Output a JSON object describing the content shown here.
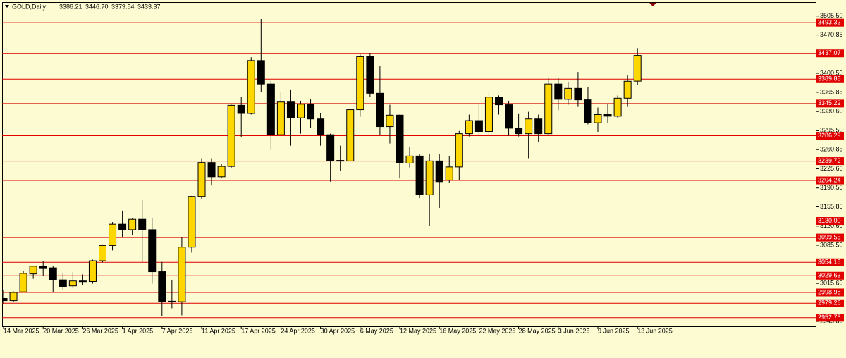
{
  "chart_data": {
    "type": "candlestick",
    "title": "GOLD,Daily",
    "header_ohlc": [
      "3386.21",
      "3446.70",
      "3379.54",
      "3433.37"
    ],
    "categories": [
      "14 Mar 2025",
      null,
      null,
      null,
      "20 Mar 2025",
      null,
      null,
      null,
      "26 Mar 2025",
      null,
      null,
      null,
      "1 Apr 2025",
      null,
      null,
      null,
      "7 Apr 2025",
      null,
      null,
      null,
      "11 Apr 2025",
      null,
      null,
      null,
      "17 Apr 2025",
      null,
      null,
      null,
      "24 Apr 2025",
      null,
      null,
      null,
      "30 Apr 2025",
      null,
      null,
      null,
      "6 May 2025",
      null,
      null,
      null,
      "12 May 2025",
      null,
      null,
      null,
      "16 May 2025",
      null,
      null,
      null,
      "22 May 2025",
      null,
      null,
      null,
      "28 May 2025",
      null,
      null,
      null,
      "3 Jun 2025",
      null,
      null,
      null,
      "9 Jun 2025",
      null,
      null,
      null,
      "13 Jun 2025"
    ],
    "open": [
      2988,
      2984,
      3000,
      3033,
      3047,
      3044,
      3022,
      3011,
      3020,
      3019,
      3057,
      3085,
      3124,
      3114,
      3133,
      3114,
      3037,
      2982,
      2982,
      3082,
      3175,
      3237,
      3211,
      3230,
      3342,
      3327,
      3424,
      3381,
      3288,
      3348,
      3319,
      3344,
      3317,
      3288,
      3241,
      3240,
      3334,
      3431,
      3364,
      3303,
      3324,
      3236,
      3249,
      3178,
      3240,
      3205,
      3229,
      3290,
      3314,
      3294,
      3357,
      3343,
      3300,
      3290,
      3317,
      3290,
      3381,
      3353,
      3373,
      3352,
      3310,
      3325,
      3322,
      3355,
      3386.21
    ],
    "high": [
      3004,
      3001,
      3038,
      3048,
      3057,
      3048,
      3034,
      3036,
      3032,
      3059,
      3087,
      3128,
      3149,
      3135,
      3168,
      3136,
      3055,
      3022,
      3100,
      3176,
      3245,
      3245,
      3234,
      3343,
      3357,
      3430,
      3500,
      3387,
      3367,
      3371,
      3350,
      3353,
      3328,
      3290,
      3268,
      3336,
      3437,
      3438,
      3414,
      3343,
      3325,
      3265,
      3253,
      3252,
      3252,
      3249,
      3295,
      3325,
      3345,
      3365,
      3360,
      3350,
      3326,
      3330,
      3325,
      3392,
      3392,
      3385,
      3403,
      3375,
      3338,
      3344,
      3360,
      3398,
      3446.7
    ],
    "low": [
      2977,
      2982,
      2999,
      3024,
      3029,
      2999,
      3004,
      3007,
      3012,
      3015,
      3054,
      3076,
      3100,
      3104,
      3054,
      3015,
      2956,
      2970,
      2957,
      3072,
      3170,
      3195,
      3208,
      3228,
      3283,
      3325,
      3366,
      3260,
      3287,
      3268,
      3290,
      3300,
      3268,
      3202,
      3222,
      3239,
      3321,
      3357,
      3287,
      3272,
      3208,
      3228,
      3172,
      3121,
      3154,
      3200,
      3205,
      3285,
      3286,
      3287,
      3325,
      3286,
      3285,
      3245,
      3275,
      3287,
      3333,
      3343,
      3339,
      3307,
      3293,
      3309,
      3318,
      3339,
      3379.54
    ],
    "close": [
      2984,
      2999,
      3034,
      3047,
      3044,
      3022,
      3010,
      3020,
      3019,
      3057,
      3085,
      3124,
      3114,
      3133,
      3114,
      3037,
      2982,
      2983,
      3082,
      3175,
      3237,
      3211,
      3230,
      3342,
      3327,
      3424,
      3381,
      3288,
      3348,
      3319,
      3344,
      3317,
      3288,
      3240,
      3240,
      3334,
      3431,
      3364,
      3303,
      3324,
      3236,
      3249,
      3178,
      3240,
      3202,
      3229,
      3290,
      3314,
      3294,
      3357,
      3343,
      3300,
      3290,
      3317,
      3290,
      3381,
      3353,
      3373,
      3352,
      3310,
      3325,
      3322,
      3355,
      3386,
      3433.37
    ],
    "up_color": "#ffd700",
    "down_color": "#000000",
    "ylim": [
      2937,
      3531
    ],
    "yticks": [
      {
        "value": 3505.5,
        "label": "3505.50"
      },
      3470.85,
      {
        "value": 3400.5,
        "label": "3400.50"
      },
      3365.85,
      {
        "value": 3330.6,
        "label": "3330.60"
      },
      {
        "value": 3295.5,
        "label": "3295.50"
      },
      3260.85,
      {
        "value": 3225.6,
        "label": "3225.60"
      },
      {
        "value": 3190.5,
        "label": "3190.50"
      },
      3155.85,
      {
        "value": 3120.6,
        "label": "3120.60"
      },
      {
        "value": 3085.5,
        "label": "3085.50"
      },
      {
        "value": 3015.6,
        "label": "3015.60"
      },
      2945.85
    ],
    "levels": [
      3493.32,
      3437.07,
      3389.88,
      3345.22,
      3286.29,
      3239.72,
      3204.24,
      {
        "value": 3130,
        "label": "3130.00"
      },
      3099.55,
      3054.18,
      3029.63,
      2998.98,
      2979.26,
      2952.75
    ],
    "level_color": "#e00000"
  }
}
